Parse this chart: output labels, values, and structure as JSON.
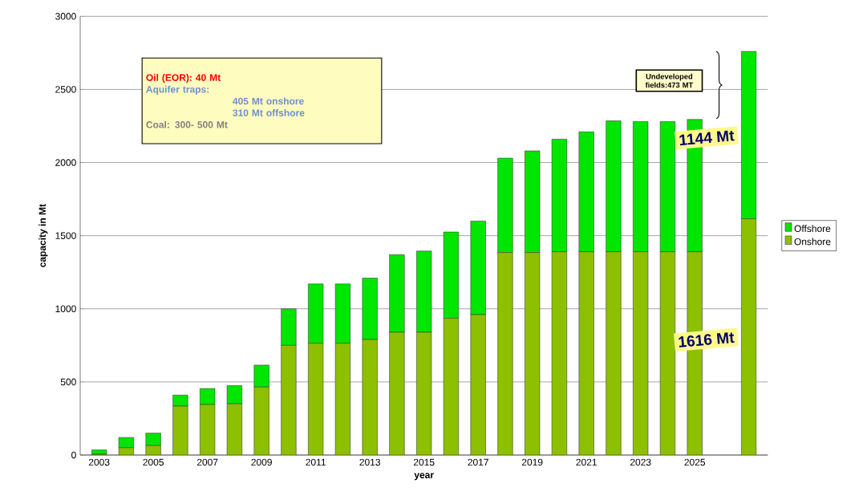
{
  "chart_data": {
    "type": "bar",
    "stacked": true,
    "xlabel": "year",
    "ylabel": "capacity in Mt",
    "categories": [
      "2003",
      null,
      "2005",
      null,
      "2007",
      null,
      "2009",
      null,
      "2011",
      null,
      "2013",
      null,
      "2015",
      null,
      "2017",
      null,
      "2019",
      null,
      "2021",
      null,
      "2023",
      null,
      "2025",
      null,
      null
    ],
    "series": [
      {
        "name": "Onshore",
        "color": "#8cc000",
        "values": [
          5,
          50,
          65,
          335,
          345,
          350,
          465,
          750,
          765,
          765,
          790,
          840,
          840,
          935,
          960,
          1385,
          1385,
          1390,
          1390,
          1390,
          1390,
          1390,
          1390,
          null,
          1616
        ],
        "value_labels": [
          null,
          null,
          null,
          null,
          null,
          null,
          null,
          null,
          null,
          null,
          null,
          null,
          null,
          null,
          null,
          null,
          null,
          null,
          null,
          null,
          null,
          null,
          null,
          null,
          "1616 Mt"
        ]
      },
      {
        "name": "Offshore",
        "color": "#00e600",
        "values": [
          30,
          70,
          85,
          75,
          110,
          125,
          150,
          250,
          405,
          405,
          420,
          530,
          555,
          590,
          640,
          645,
          695,
          770,
          820,
          895,
          890,
          890,
          905,
          null,
          1144
        ],
        "value_labels": [
          null,
          null,
          null,
          null,
          null,
          null,
          null,
          null,
          null,
          null,
          null,
          null,
          null,
          null,
          null,
          null,
          null,
          null,
          null,
          null,
          null,
          null,
          null,
          null,
          "1144 Mt"
        ]
      }
    ],
    "ylim": [
      0,
      3000
    ],
    "yticks": [
      0,
      500,
      1000,
      1500,
      2000,
      2500,
      3000
    ],
    "grid": "y",
    "legend": "right",
    "annotations": [
      "Oil (EOR): 40 Mt",
      "Aquifer traps:",
      "405 Mt onshore",
      "310 Mt offshore",
      "Coal: 300- 500 Mt",
      "Undeveloped fields:473 MT"
    ]
  }
}
